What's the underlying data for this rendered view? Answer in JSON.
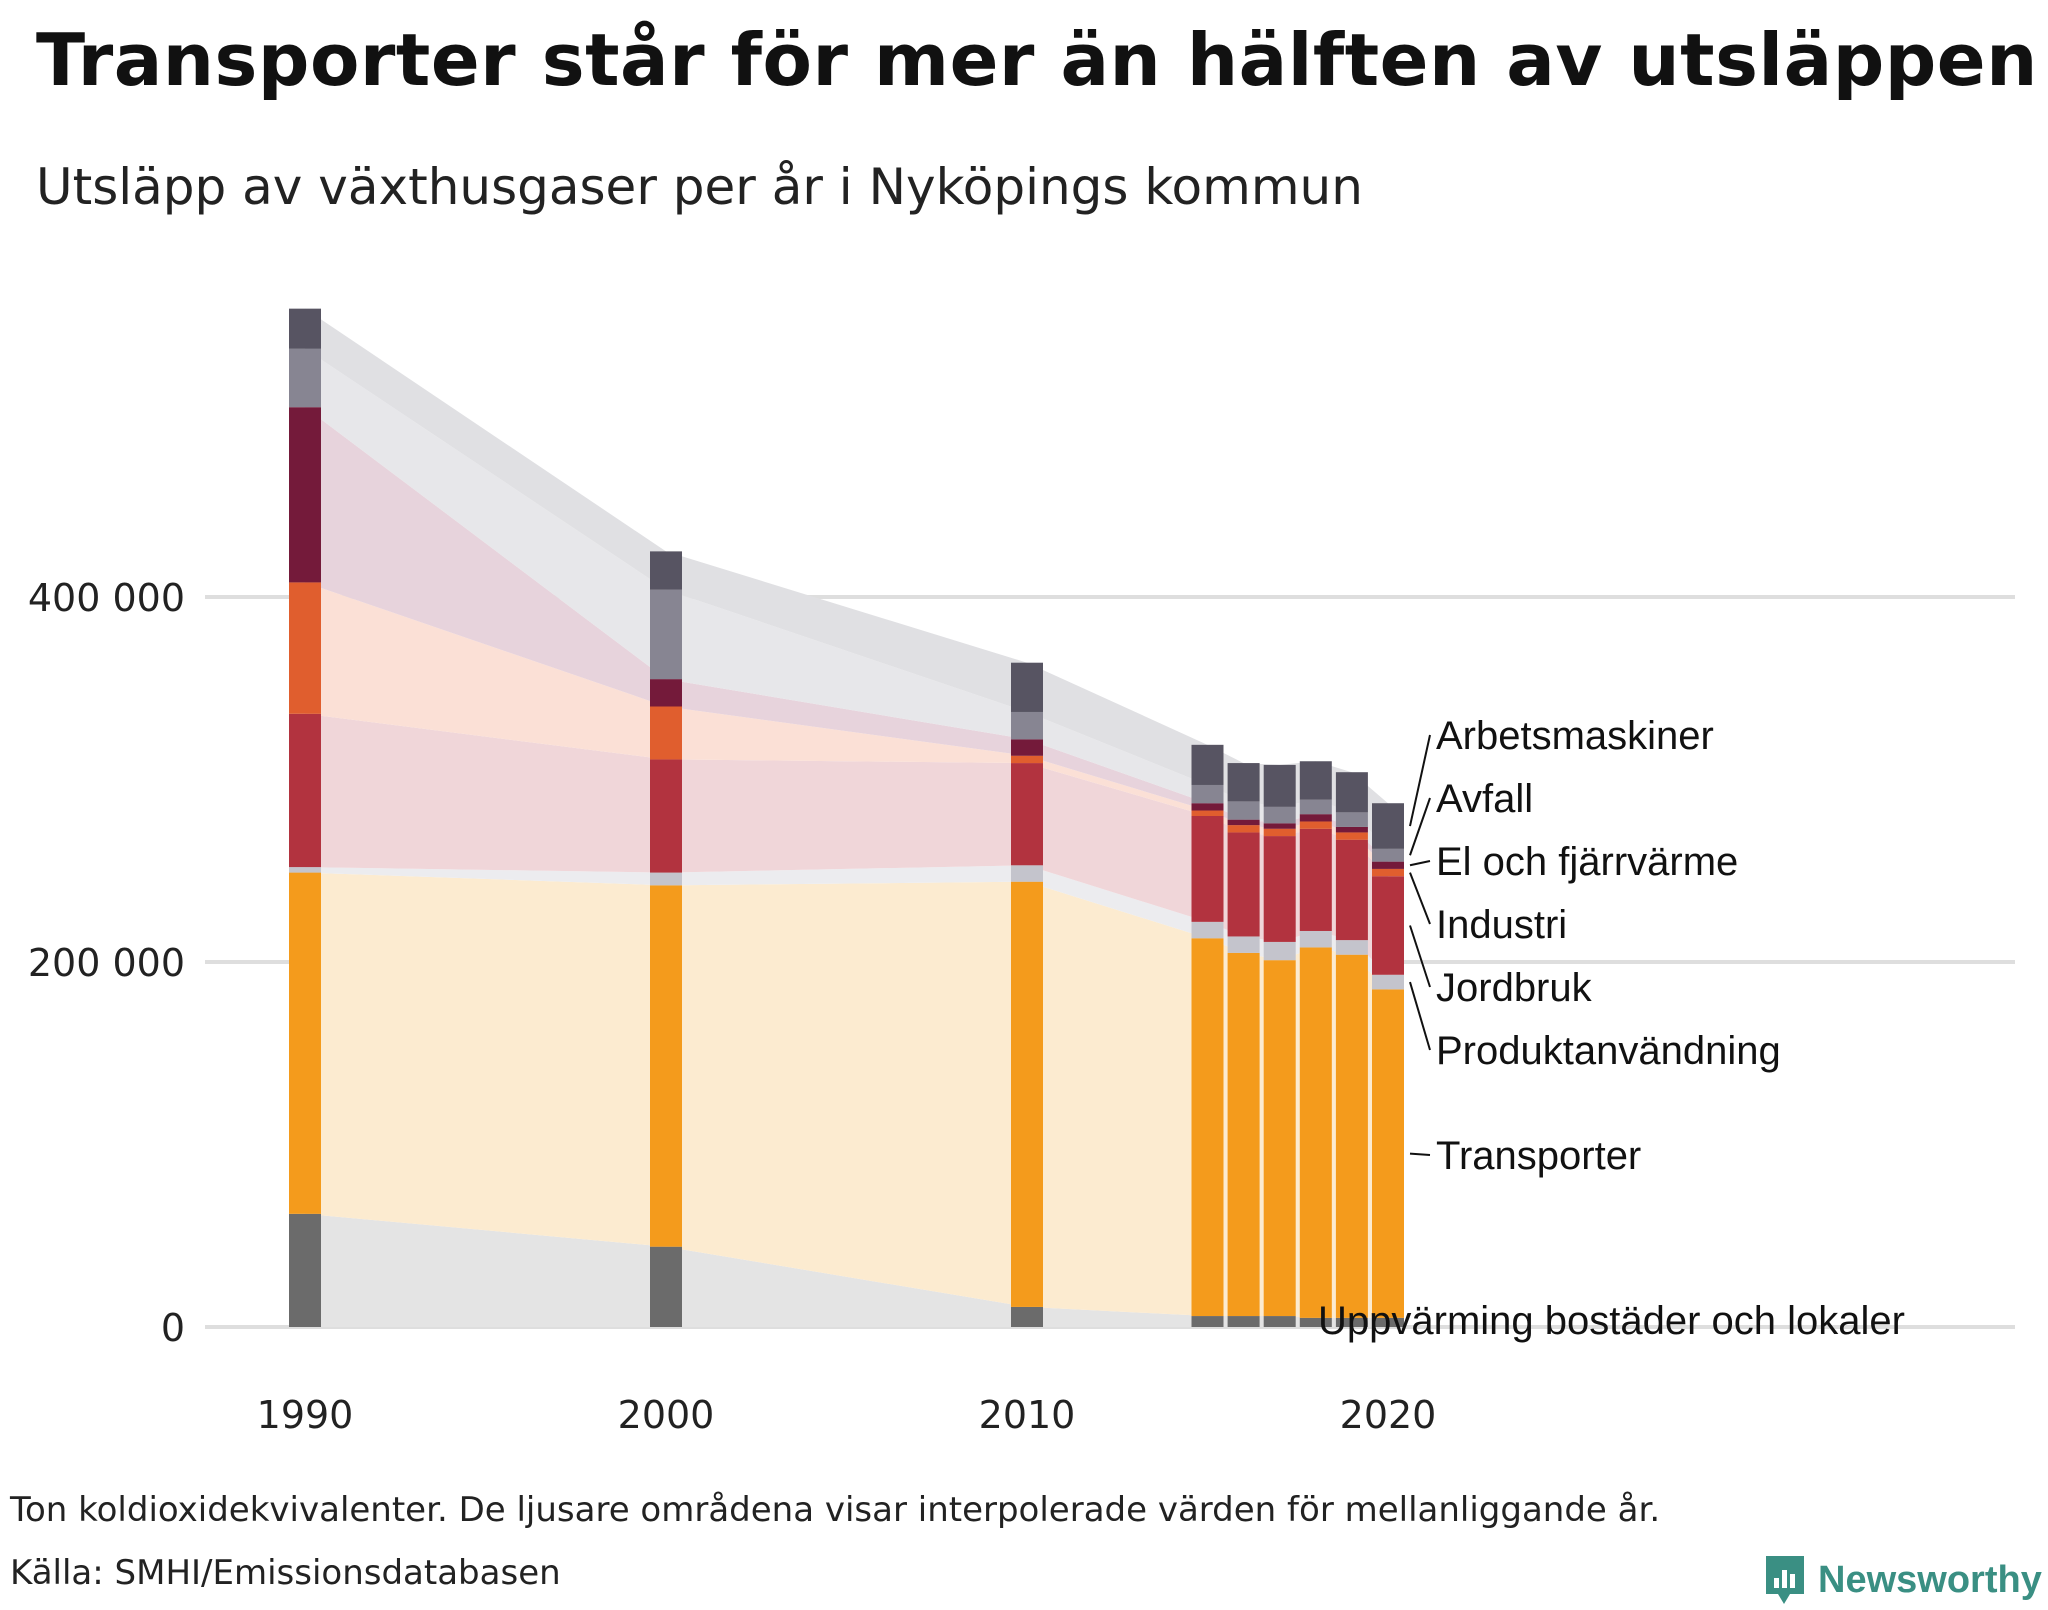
{
  "title": "Transporter står för mer än hälften av utsläppen",
  "subtitle": "Utsläpp av växthusgaser per år i Nyköpings kommun",
  "footnote": "Ton koldioxidekvivalenter. De ljusare områdena visar interpolerade värden för mellanliggande år.",
  "source": "Källa: SMHI/Emissionsdatabasen",
  "brand": "Newsworthy",
  "chart_data": {
    "type": "bar",
    "stacked": true,
    "x": [
      1990,
      2000,
      2010,
      2015,
      2016,
      2017,
      2018,
      2019,
      2020
    ],
    "x_ticks": [
      1990,
      2000,
      2010,
      2020
    ],
    "y_ticks": [
      0,
      200000,
      400000
    ],
    "y_tick_labels": [
      "0",
      "200 000",
      "400 000"
    ],
    "ylim": [
      0,
      560000
    ],
    "grid": true,
    "interpolated_areas": true,
    "series": [
      {
        "name": "Uppvärming bostäder och lokaler",
        "color": "#6b6b6b",
        "area_color": "#e4e4e4",
        "values": [
          62000,
          44000,
          11000,
          6000,
          6000,
          6000,
          5000,
          5000,
          5000
        ]
      },
      {
        "name": "Transporter",
        "color": "#f49b1c",
        "area_color": "#fcebd0",
        "values": [
          187000,
          198000,
          233000,
          207000,
          199000,
          195000,
          203000,
          199000,
          180000
        ]
      },
      {
        "name": "Produktanvändning",
        "color": "#c4c4cc",
        "area_color": "#ececef",
        "values": [
          3000,
          7000,
          9000,
          9000,
          9000,
          10000,
          9000,
          8000,
          8000
        ]
      },
      {
        "name": "Jordbruk",
        "color": "#b2333f",
        "area_color": "#f0d6d9",
        "values": [
          84000,
          62000,
          56000,
          58000,
          57000,
          58000,
          56000,
          55000,
          54000
        ]
      },
      {
        "name": "Industri",
        "color": "#e05e2e",
        "area_color": "#fbe0d6",
        "values": [
          72000,
          29000,
          4000,
          3000,
          4000,
          4000,
          4000,
          4000,
          4000
        ]
      },
      {
        "name": "El och fjärrvärme",
        "color": "#741a3a",
        "area_color": "#e7d3dc",
        "values": [
          96000,
          15000,
          9000,
          4000,
          3000,
          3000,
          4000,
          3000,
          4000
        ]
      },
      {
        "name": "Avfall",
        "color": "#878592",
        "area_color": "#e7e7ea",
        "values": [
          32000,
          49000,
          15000,
          10000,
          10000,
          9000,
          8000,
          8000,
          7000
        ]
      },
      {
        "name": "Arbetsmaskiner",
        "color": "#575462",
        "area_color": "#e0e0e3",
        "values": [
          22000,
          21000,
          27000,
          22000,
          21000,
          23000,
          21000,
          22000,
          25000
        ]
      }
    ]
  }
}
